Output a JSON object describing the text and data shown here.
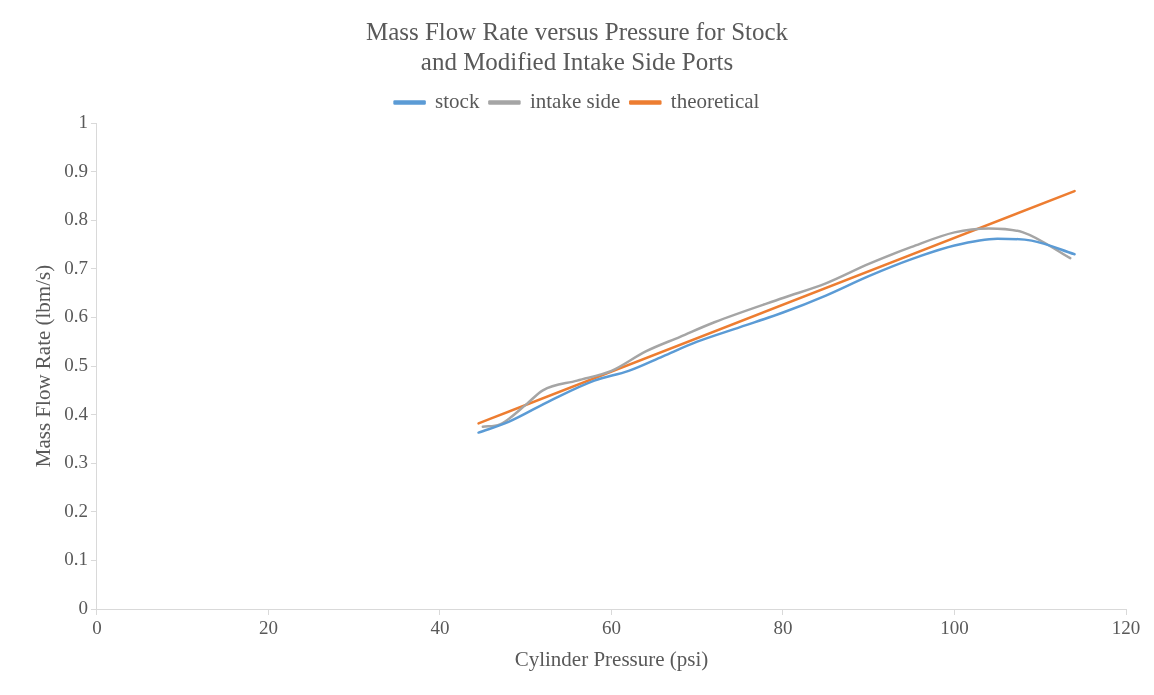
{
  "chart_data": {
    "type": "line",
    "title": "Mass Flow Rate versus Pressure for Stock and Modified Intake Side Ports",
    "xlabel": "Cylinder Pressure (psi)",
    "ylabel": "Mass Flow Rate (lbm/s)",
    "xlim": [
      0,
      120
    ],
    "xticks": [
      0,
      20,
      40,
      60,
      80,
      100,
      120
    ],
    "ylim": [
      0,
      1
    ],
    "yticks": [
      0,
      0.1,
      0.2,
      0.3,
      0.4,
      0.5,
      0.6,
      0.7,
      0.8,
      0.9,
      1
    ],
    "grid": false,
    "legend": "top",
    "marker": "none",
    "line_style": "solid",
    "series": [
      {
        "name": "stock",
        "color": "#5b9bd5",
        "x": [
          44.5,
          48,
          53,
          58,
          62,
          66,
          70,
          75,
          80,
          85,
          90,
          95,
          100,
          105,
          109,
          114
        ],
        "values": [
          0.363,
          0.385,
          0.43,
          0.47,
          0.49,
          0.52,
          0.55,
          0.58,
          0.61,
          0.645,
          0.685,
          0.72,
          0.748,
          0.762,
          0.758,
          0.73
        ]
      },
      {
        "name": "intake side",
        "color": "#a5a5a5",
        "x": [
          45,
          47,
          50,
          52,
          56,
          60,
          64,
          68,
          72,
          80,
          85,
          90,
          95,
          100,
          104,
          108,
          113.5
        ],
        "values": [
          0.375,
          0.38,
          0.42,
          0.45,
          0.47,
          0.49,
          0.53,
          0.56,
          0.59,
          0.64,
          0.67,
          0.71,
          0.745,
          0.775,
          0.783,
          0.775,
          0.722
        ]
      },
      {
        "name": "theoretical",
        "color": "#ed7d31",
        "x": [
          44.5,
          114
        ],
        "values": [
          0.382,
          0.86
        ]
      }
    ]
  }
}
